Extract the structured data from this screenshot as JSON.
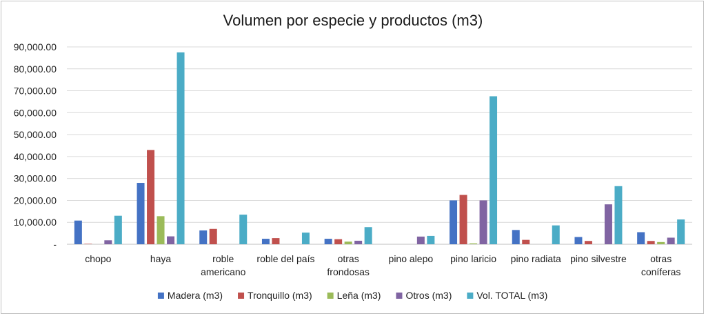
{
  "chart_data": {
    "type": "bar",
    "title": "Volumen por especie y productos (m3)",
    "categories": [
      [
        "chopo"
      ],
      [
        "haya"
      ],
      [
        "roble",
        "americano"
      ],
      [
        "roble del país"
      ],
      [
        "otras",
        "frondosas"
      ],
      [
        "pino alepo"
      ],
      [
        "pino laricio"
      ],
      [
        "pino radiata"
      ],
      [
        "pino silvestre"
      ],
      [
        "otras",
        "coníferas"
      ]
    ],
    "series": [
      {
        "name": "Madera (m3)",
        "color": "#4472C4",
        "values": [
          10800,
          28000,
          6300,
          2500,
          2500,
          0,
          20000,
          6500,
          3300,
          5500
        ]
      },
      {
        "name": "Tronquillo (m3)",
        "color": "#C0504D",
        "values": [
          200,
          43000,
          7000,
          2800,
          2300,
          0,
          22500,
          2000,
          1500,
          1500
        ]
      },
      {
        "name": "Leña (m3)",
        "color": "#9BBB59",
        "values": [
          0,
          12800,
          0,
          0,
          1200,
          0,
          400,
          0,
          0,
          1000
        ]
      },
      {
        "name": "Otros (m3)",
        "color": "#8064A2",
        "values": [
          1800,
          3600,
          0,
          0,
          1600,
          3500,
          20000,
          0,
          18200,
          3000
        ]
      },
      {
        "name": "Vol. TOTAL (m3)",
        "color": "#4BACC6",
        "values": [
          13000,
          87500,
          13500,
          5300,
          7800,
          3800,
          67500,
          8600,
          26500,
          11300
        ]
      }
    ],
    "yticks": [
      "-",
      "10,000.00",
      "20,000.00",
      "30,000.00",
      "40,000.00",
      "50,000.00",
      "60,000.00",
      "70,000.00",
      "80,000.00",
      "90,000.00"
    ],
    "ylim": [
      0,
      90000
    ],
    "grid": true,
    "legend_position": "bottom"
  }
}
